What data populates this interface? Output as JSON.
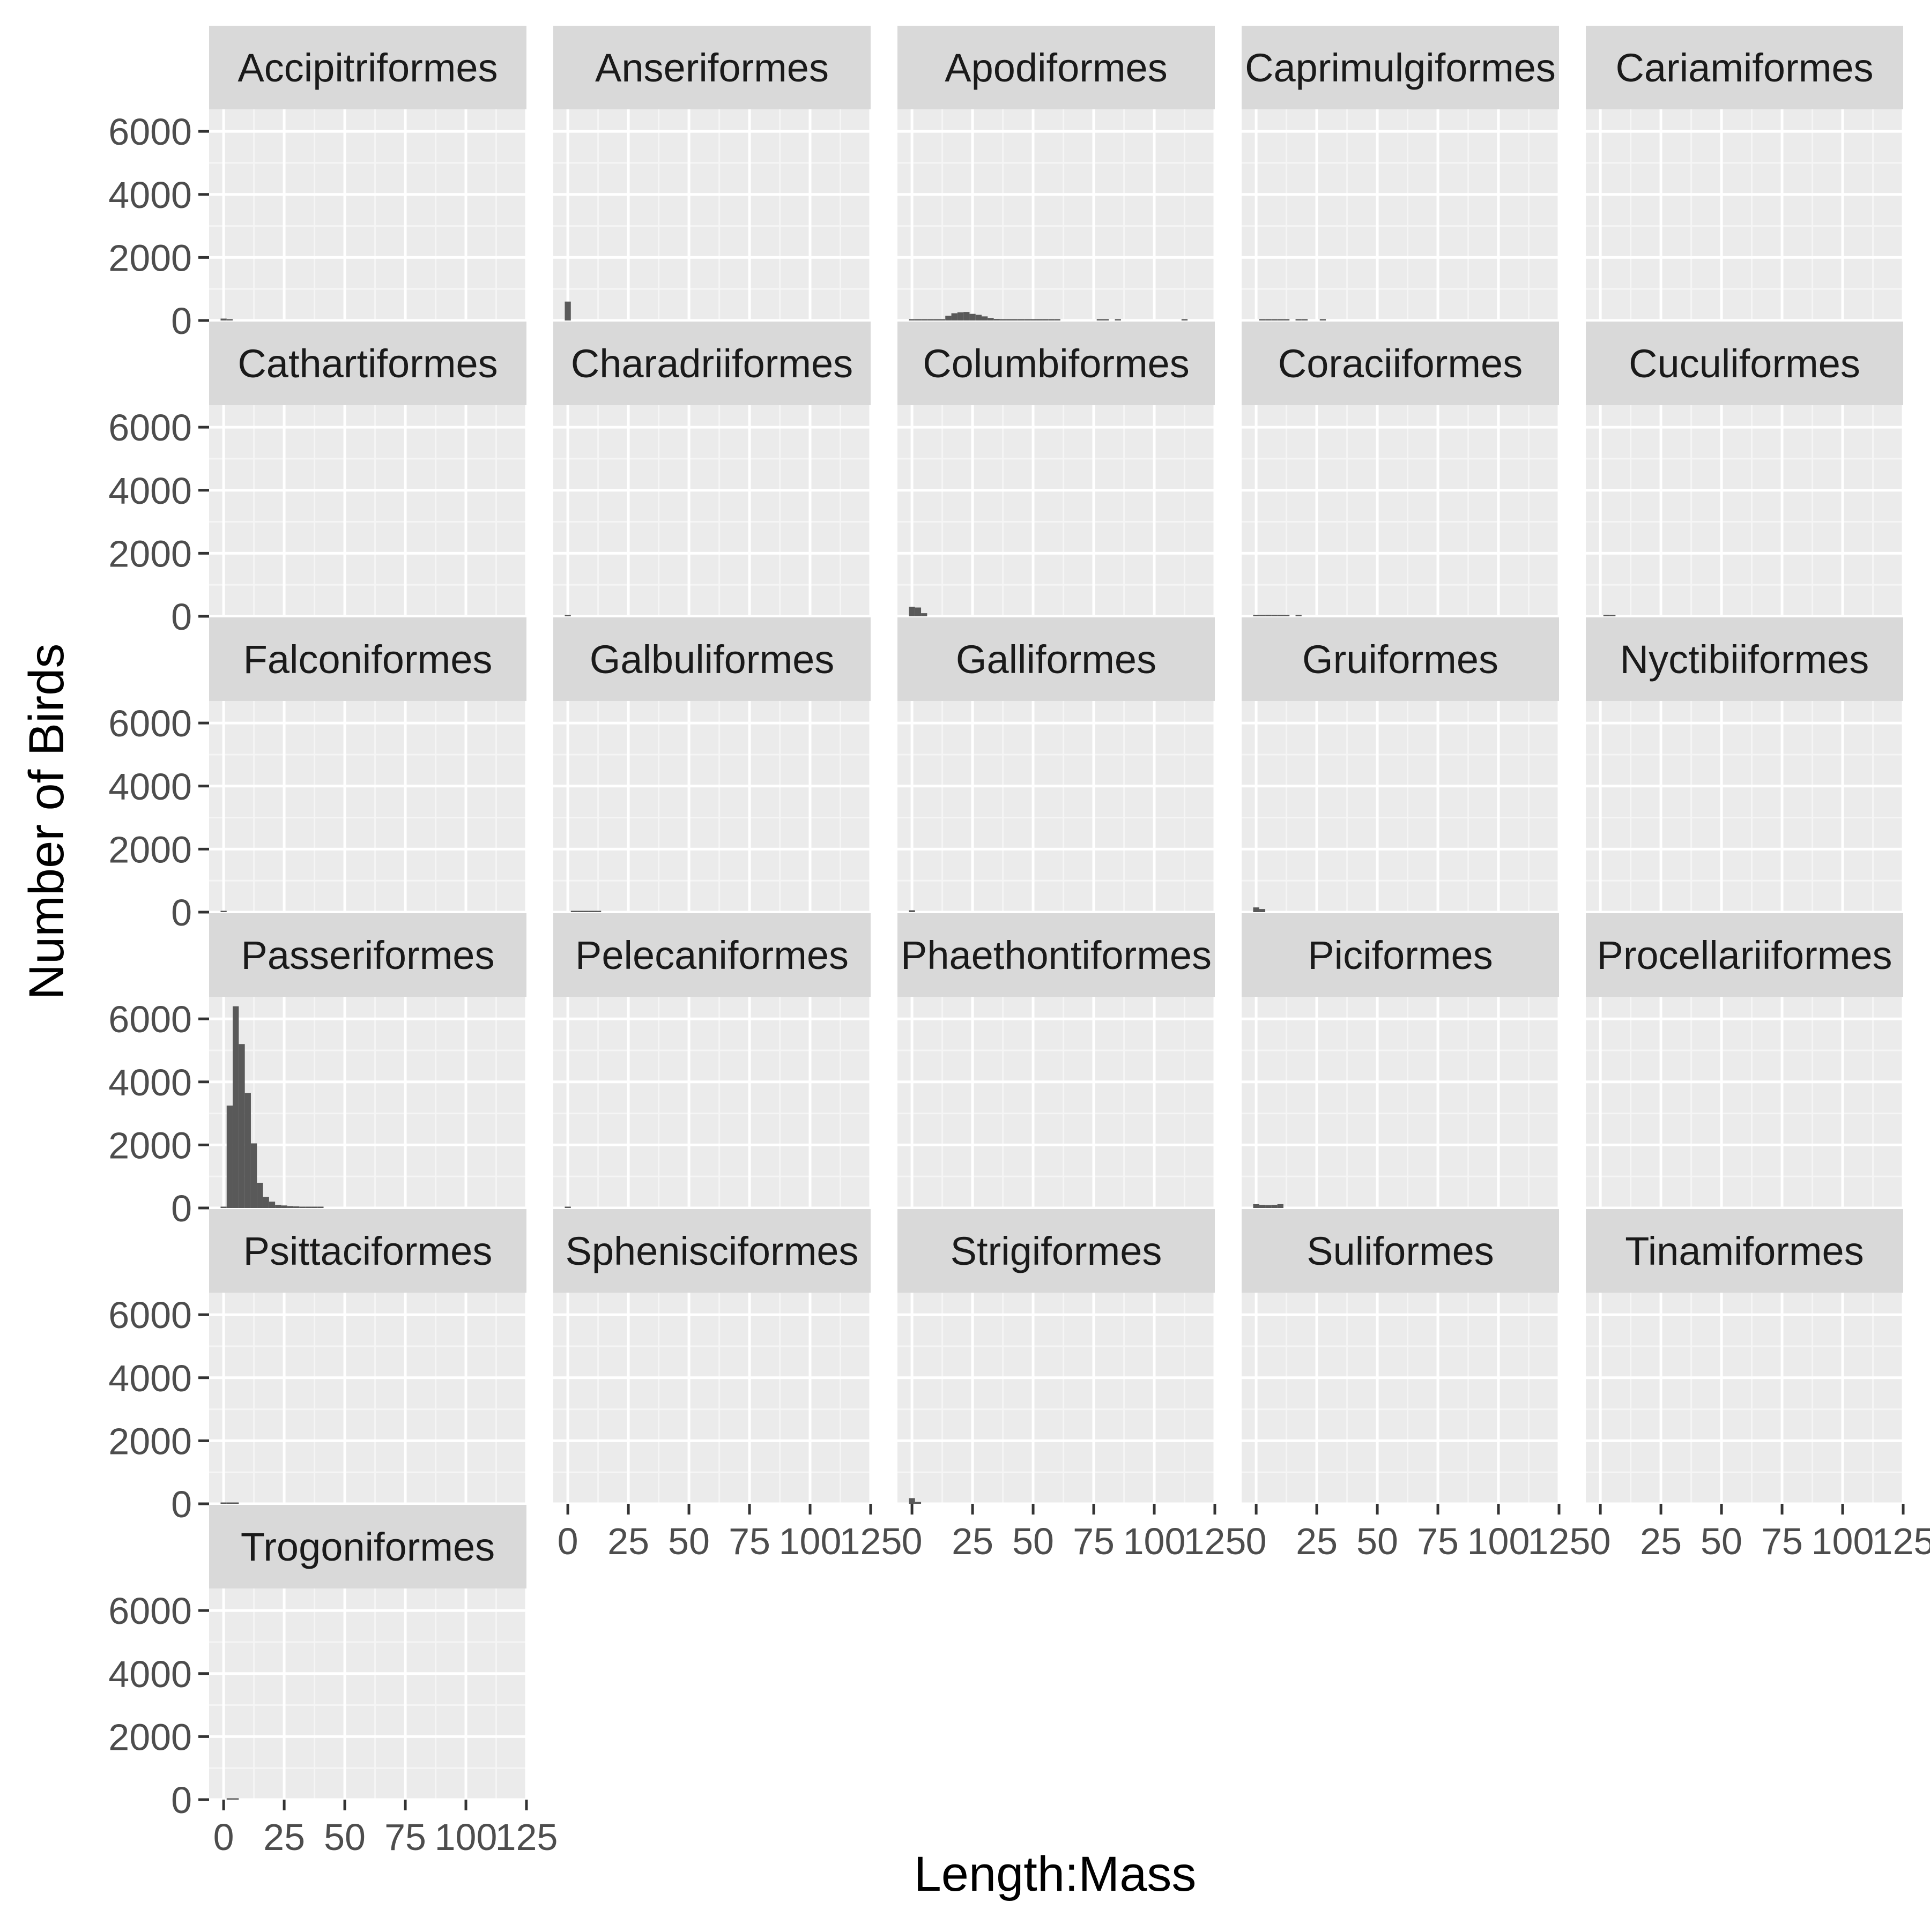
{
  "chart_data": {
    "type": "bar",
    "layout": "faceted histogram",
    "xlabel": "Length:Mass",
    "ylabel": "Number of Birds",
    "xlim": [
      -6,
      125
    ],
    "ylim": [
      0,
      6700
    ],
    "x_ticks": [
      0,
      25,
      50,
      75,
      100,
      125
    ],
    "y_ticks": [
      0,
      2000,
      4000,
      6000
    ],
    "x_tick_labels": [
      "0",
      "25",
      "50",
      "75",
      "100",
      "125"
    ],
    "y_tick_labels": [
      "0",
      "2000",
      "4000",
      "6000"
    ],
    "grid": true,
    "bin_width": 2.5,
    "colors": {
      "bar": "#595959",
      "panel": "#EBEBEB",
      "strip": "#D9D9D9",
      "grid_major": "#FFFFFF",
      "grid_minor": "#F5F5F5",
      "tick_text": "#4D4D4D",
      "axis_title": "#000000"
    },
    "facets": [
      {
        "name": "Accipitriformes",
        "bins": [
          [
            0,
            60
          ],
          [
            2.5,
            40
          ]
        ]
      },
      {
        "name": "Anseriformes",
        "bins": [
          [
            0,
            600
          ]
        ]
      },
      {
        "name": "Apodiformes",
        "bins": [
          [
            0,
            15
          ],
          [
            2.5,
            15
          ],
          [
            5,
            15
          ],
          [
            7.5,
            15
          ],
          [
            10,
            15
          ],
          [
            12.5,
            15
          ],
          [
            15,
            150
          ],
          [
            17.5,
            230
          ],
          [
            20,
            260
          ],
          [
            22.5,
            270
          ],
          [
            25,
            210
          ],
          [
            27.5,
            180
          ],
          [
            30,
            130
          ],
          [
            32.5,
            80
          ],
          [
            35,
            50
          ],
          [
            37.5,
            40
          ],
          [
            40,
            30
          ],
          [
            42.5,
            30
          ],
          [
            45,
            25
          ],
          [
            47.5,
            20
          ],
          [
            50,
            15
          ],
          [
            52.5,
            15
          ],
          [
            55,
            15
          ],
          [
            57.5,
            10
          ],
          [
            60,
            10
          ],
          [
            77.5,
            10
          ],
          [
            80,
            10
          ],
          [
            85,
            10
          ],
          [
            112.5,
            15
          ]
        ]
      },
      {
        "name": "Caprimulgiformes",
        "bins": [
          [
            2.5,
            30
          ],
          [
            5,
            40
          ],
          [
            7.5,
            30
          ],
          [
            10,
            20
          ],
          [
            12.5,
            15
          ],
          [
            17.5,
            10
          ],
          [
            20,
            10
          ],
          [
            27.5,
            15
          ]
        ]
      },
      {
        "name": "Cariamiformes",
        "bins": []
      },
      {
        "name": "Cathartiformes",
        "bins": []
      },
      {
        "name": "Charadriiformes",
        "bins": [
          [
            0,
            40
          ]
        ]
      },
      {
        "name": "Columbiformes",
        "bins": [
          [
            0,
            300
          ],
          [
            2.5,
            280
          ],
          [
            5,
            100
          ]
        ]
      },
      {
        "name": "Coraciiformes",
        "bins": [
          [
            0,
            25
          ],
          [
            2.5,
            40
          ],
          [
            5,
            45
          ],
          [
            7.5,
            30
          ],
          [
            10,
            20
          ],
          [
            12.5,
            15
          ],
          [
            17.5,
            10
          ]
        ]
      },
      {
        "name": "Cuculiformes",
        "bins": [
          [
            2.5,
            45
          ],
          [
            5,
            35
          ]
        ]
      },
      {
        "name": "Falconiformes",
        "bins": [
          [
            0,
            40
          ]
        ]
      },
      {
        "name": "Galbuliformes",
        "bins": [
          [
            2.5,
            35
          ],
          [
            5,
            35
          ],
          [
            7.5,
            30
          ],
          [
            10,
            25
          ],
          [
            12.5,
            20
          ]
        ]
      },
      {
        "name": "Galliformes",
        "bins": [
          [
            0,
            60
          ]
        ]
      },
      {
        "name": "Gruiformes",
        "bins": [
          [
            0,
            150
          ],
          [
            2.5,
            100
          ]
        ]
      },
      {
        "name": "Nyctibiiformes",
        "bins": []
      },
      {
        "name": "Passeriformes",
        "bins": [
          [
            0,
            30
          ],
          [
            2.5,
            3250
          ],
          [
            5,
            6400
          ],
          [
            7.5,
            5200
          ],
          [
            10,
            3650
          ],
          [
            12.5,
            2050
          ],
          [
            15,
            800
          ],
          [
            17.5,
            350
          ],
          [
            20,
            200
          ],
          [
            22.5,
            100
          ],
          [
            25,
            80
          ],
          [
            27.5,
            60
          ],
          [
            30,
            50
          ],
          [
            32.5,
            40
          ],
          [
            35,
            30
          ],
          [
            37.5,
            30
          ],
          [
            40,
            30
          ]
        ]
      },
      {
        "name": "Pelecaniformes",
        "bins": [
          [
            0,
            40
          ]
        ]
      },
      {
        "name": "Phaethontiformes",
        "bins": []
      },
      {
        "name": "Piciformes",
        "bins": [
          [
            0,
            120
          ],
          [
            2.5,
            100
          ],
          [
            5,
            90
          ],
          [
            7.5,
            100
          ],
          [
            10,
            120
          ]
        ]
      },
      {
        "name": "Procellariiformes",
        "bins": []
      },
      {
        "name": "Psittaciformes",
        "bins": [
          [
            0,
            30
          ],
          [
            2.5,
            40
          ],
          [
            5,
            30
          ]
        ]
      },
      {
        "name": "Sphenisciformes",
        "bins": []
      },
      {
        "name": "Strigiformes",
        "bins": [
          [
            0,
            180
          ],
          [
            2.5,
            60
          ]
        ]
      },
      {
        "name": "Suliformes",
        "bins": []
      },
      {
        "name": "Tinamiformes",
        "bins": []
      },
      {
        "name": "Trogoniformes",
        "bins": [
          [
            2.5,
            30
          ],
          [
            5,
            30
          ]
        ]
      }
    ]
  }
}
